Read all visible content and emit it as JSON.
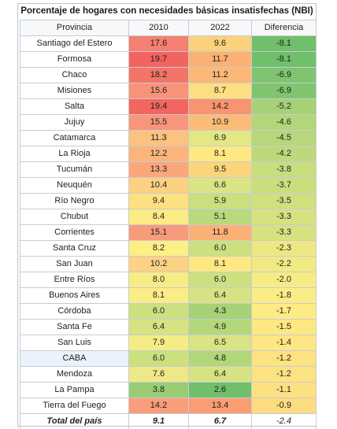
{
  "title": "Porcentaje de hogares con necesidades básicas insatisfechas (NBI)",
  "headers": [
    "Provincia",
    "2010",
    "2022",
    "Diferencia"
  ],
  "rows": [
    {
      "prov": "Santiago del Estero",
      "v2010": "17.6",
      "v2022": "9.6",
      "diff": "-8.1",
      "c2010": "#f47f72",
      "c2022": "#fbd27b",
      "cdiff": "#6fbf6b"
    },
    {
      "prov": "Formosa",
      "v2010": "19.7",
      "v2022": "11.7",
      "diff": "-8.1",
      "c2010": "#f3635f",
      "c2022": "#fbb174",
      "cdiff": "#6fbf6b"
    },
    {
      "prov": "Chaco",
      "v2010": "18.2",
      "v2022": "11.2",
      "diff": "-6.9",
      "c2010": "#f47468",
      "c2022": "#fbb877",
      "cdiff": "#80c46f"
    },
    {
      "prov": "Misiones",
      "v2010": "15.6",
      "v2022": "8.7",
      "diff": "-6.9",
      "c2010": "#f8937a",
      "c2022": "#fcdf80",
      "cdiff": "#80c46f"
    },
    {
      "prov": "Salta",
      "v2010": "19.4",
      "v2022": "14.2",
      "diff": "-5.2",
      "c2010": "#f3655f",
      "c2022": "#f8946f",
      "cdiff": "#a6d177"
    },
    {
      "prov": "Jujuy",
      "v2010": "15.5",
      "v2022": "10.9",
      "diff": "-4.6",
      "c2010": "#f8957b",
      "c2022": "#fbbc78",
      "cdiff": "#b4d67a"
    },
    {
      "prov": "Catamarca",
      "v2010": "11.3",
      "v2022": "6.9",
      "diff": "-4.5",
      "c2010": "#fcc27f",
      "c2022": "#e3e784",
      "cdiff": "#b6d77b"
    },
    {
      "prov": "La Rioja",
      "v2010": "12.2",
      "v2022": "8.1",
      "diff": "-4.2",
      "c2010": "#fbb47c",
      "c2022": "#fde882",
      "cdiff": "#bdd97c"
    },
    {
      "prov": "Tucumán",
      "v2010": "13.3",
      "v2022": "9.5",
      "diff": "-3.8",
      "c2010": "#f9a77b",
      "c2022": "#fbd47c",
      "cdiff": "#c8dd7e"
    },
    {
      "prov": "Neuquén",
      "v2010": "10.4",
      "v2022": "6.6",
      "diff": "-3.7",
      "c2010": "#fcd182",
      "c2022": "#dce585",
      "cdiff": "#cbde7e"
    },
    {
      "prov": "Río Negro",
      "v2010": "9.4",
      "v2022": "5.9",
      "diff": "-3.5",
      "c2010": "#fde082",
      "c2022": "#cadf80",
      "cdiff": "#d0e07f"
    },
    {
      "prov": "Chubut",
      "v2010": "8.4",
      "v2022": "5.1",
      "diff": "-3.3",
      "c2010": "#fdeb85",
      "c2022": "#b9d97c",
      "cdiff": "#d6e280"
    },
    {
      "prov": "Corrientes",
      "v2010": "15.1",
      "v2022": "11.8",
      "diff": "-3.3",
      "c2010": "#f89a7c",
      "c2022": "#fbb075",
      "cdiff": "#d6e280"
    },
    {
      "prov": "Santa Cruz",
      "v2010": "8.2",
      "v2022": "6.0",
      "diff": "-2.3",
      "c2010": "#fdee86",
      "c2022": "#cde080",
      "cdiff": "#eee884"
    },
    {
      "prov": "San Juan",
      "v2010": "10.2",
      "v2022": "8.1",
      "diff": "-2.2",
      "c2010": "#fcd382",
      "c2022": "#fde882",
      "cdiff": "#f1e984"
    },
    {
      "prov": "Entre Ríos",
      "v2010": "8.0",
      "v2022": "6.0",
      "diff": "-2.0",
      "c2010": "#f7ec86",
      "c2022": "#cde080",
      "cdiff": "#f6eb85"
    },
    {
      "prov": "Buenos Aires",
      "v2010": "8.1",
      "v2022": "6.4",
      "diff": "-1.8",
      "c2010": "#faed86",
      "c2022": "#d7e383",
      "cdiff": "#fbec86"
    },
    {
      "prov": "Córdoba",
      "v2010": "6.0",
      "v2022": "4.3",
      "diff": "-1.7",
      "c2010": "#cde080",
      "c2022": "#a7d278",
      "cdiff": "#fdeb85"
    },
    {
      "prov": "Santa Fe",
      "v2010": "6.4",
      "v2022": "4.9",
      "diff": "-1.5",
      "c2010": "#d7e383",
      "c2022": "#b4d77b",
      "cdiff": "#fde884"
    },
    {
      "prov": "San Luis",
      "v2010": "7.9",
      "v2022": "6.5",
      "diff": "-1.4",
      "c2010": "#f5ec86",
      "c2022": "#d9e484",
      "cdiff": "#fde683"
    },
    {
      "prov": "CABA",
      "v2010": "6.0",
      "v2022": "4.8",
      "diff": "-1.2",
      "c2010": "#cde080",
      "c2022": "#b2d67a",
      "cdiff": "#fde282",
      "hl": true
    },
    {
      "prov": "Mendoza",
      "v2010": "7.6",
      "v2022": "6.4",
      "diff": "-1.2",
      "c2010": "#eee986",
      "c2022": "#d7e383",
      "cdiff": "#fde282"
    },
    {
      "prov": "La Pampa",
      "v2010": "3.8",
      "v2022": "2.6",
      "diff": "-1.1",
      "c2010": "#98cd74",
      "c2022": "#6fbf6b",
      "cdiff": "#fde082"
    },
    {
      "prov": "Tierra del Fuego",
      "v2010": "14.2",
      "v2022": "13.4",
      "diff": "-0.9",
      "c2010": "#f99d7a",
      "c2022": "#fa9d72",
      "cdiff": "#fddc81"
    }
  ],
  "total": {
    "prov": "Total del país",
    "v2010": "9.1",
    "v2022": "6.7",
    "diff": "-2.4"
  }
}
